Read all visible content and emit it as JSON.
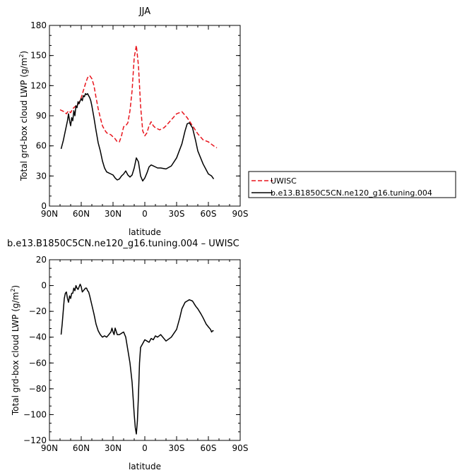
{
  "chart_data": [
    {
      "type": "line",
      "title": "JJA",
      "xlabel": "latitude",
      "ylabel_main": "Total grd-box cloud LWP (g/m",
      "ylabel_sup": "2",
      "ylabel_close": ")",
      "xlim": [
        90,
        -90
      ],
      "ylim": [
        0,
        180
      ],
      "xticks": [
        90,
        60,
        30,
        0,
        -30,
        -60,
        -90
      ],
      "xtick_labels": [
        "90N",
        "60N",
        "30N",
        "0",
        "30S",
        "60S",
        "90S"
      ],
      "yticks": [
        0,
        30,
        60,
        90,
        120,
        150,
        180
      ],
      "ytick_labels": [
        "0",
        "30",
        "60",
        "90",
        "120",
        "150",
        "180"
      ],
      "legend_position": "right",
      "series": [
        {
          "name": "UWISC",
          "color": "#e8141c",
          "dash": true,
          "x": [
            80,
            78,
            76,
            74,
            72,
            70,
            68,
            66,
            64,
            62,
            60,
            58,
            56,
            54,
            52,
            50,
            48,
            46,
            44,
            42,
            40,
            38,
            36,
            34,
            32,
            30,
            28,
            26,
            24,
            22,
            20,
            18,
            16,
            14,
            12,
            10,
            8,
            6,
            4,
            2,
            0,
            -2,
            -4,
            -6,
            -8,
            -10,
            -12,
            -14,
            -16,
            -18,
            -20,
            -25,
            -30,
            -35,
            -40,
            -45,
            -50,
            -55,
            -60,
            -65,
            -68
          ],
          "y": [
            96,
            95,
            94,
            92,
            95,
            93,
            97,
            99,
            100,
            103,
            108,
            115,
            122,
            128,
            130,
            127,
            120,
            108,
            97,
            88,
            80,
            76,
            73,
            72,
            71,
            69,
            67,
            64,
            64,
            70,
            79,
            80,
            83,
            95,
            115,
            148,
            160,
            140,
            100,
            75,
            70,
            73,
            80,
            84,
            80,
            78,
            77,
            76,
            77,
            78,
            80,
            86,
            92,
            94,
            88,
            80,
            72,
            66,
            64,
            60,
            58
          ]
        },
        {
          "name": "b.e13.B1850C5CN.ne120_g16.tuning.004",
          "color": "#000000",
          "dash": false,
          "x": [
            79,
            77,
            75,
            73,
            72,
            71,
            70,
            69,
            68,
            67,
            66,
            65,
            64,
            63,
            62,
            61,
            60,
            59,
            58,
            57,
            56,
            55,
            54,
            53,
            52,
            51,
            50,
            48,
            46,
            44,
            42,
            40,
            38,
            36,
            34,
            32,
            30,
            28,
            26,
            24,
            22,
            20,
            18,
            16,
            14,
            12,
            10,
            8,
            6,
            4,
            2,
            0,
            -2,
            -4,
            -6,
            -8,
            -10,
            -12,
            -15,
            -20,
            -25,
            -30,
            -35,
            -38,
            -40,
            -42,
            -45,
            -48,
            -50,
            -55,
            -60,
            -63,
            -65
          ],
          "y": [
            57,
            65,
            75,
            85,
            92,
            85,
            80,
            88,
            85,
            95,
            90,
            100,
            98,
            104,
            102,
            105,
            107,
            105,
            110,
            109,
            112,
            111,
            112,
            110,
            108,
            105,
            100,
            88,
            75,
            63,
            55,
            45,
            38,
            34,
            33,
            32,
            31,
            28,
            26,
            27,
            30,
            32,
            35,
            31,
            29,
            31,
            38,
            48,
            44,
            30,
            25,
            28,
            33,
            39,
            41,
            40,
            39,
            38,
            38,
            37,
            40,
            48,
            62,
            75,
            82,
            83,
            78,
            65,
            55,
            42,
            32,
            30,
            27
          ]
        }
      ]
    },
    {
      "type": "line",
      "title": "b.e13.B1850C5CN.ne120_g16.tuning.004 – UWISC",
      "xlabel": "latitude",
      "ylabel_main": "Total grd-box cloud LWP (g/m",
      "ylabel_sup": "2",
      "ylabel_close": ")",
      "xlim": [
        90,
        -90
      ],
      "ylim": [
        -120,
        20
      ],
      "xticks": [
        90,
        60,
        30,
        0,
        -30,
        -60,
        -90
      ],
      "xtick_labels": [
        "90N",
        "60N",
        "30N",
        "0",
        "30S",
        "60S",
        "90S"
      ],
      "yticks": [
        -120,
        -100,
        -80,
        -60,
        -40,
        -20,
        0,
        20
      ],
      "ytick_labels": [
        "−120",
        "−100",
        "−80",
        "−60",
        "−40",
        "−20",
        "0",
        "20"
      ],
      "series": [
        {
          "color": "#000000",
          "dash": false,
          "x": [
            79,
            78,
            77,
            76,
            75,
            74,
            73,
            72,
            71,
            70,
            69,
            68,
            67,
            66,
            65,
            64,
            63,
            62,
            61,
            60,
            59,
            58,
            57,
            56,
            55,
            54,
            53,
            52,
            50,
            48,
            46,
            44,
            42,
            40,
            38,
            36,
            34,
            32,
            31,
            30,
            29,
            28,
            26,
            24,
            22,
            20,
            18,
            16,
            14,
            12,
            10,
            9,
            8,
            7,
            6,
            5,
            4,
            2,
            0,
            -2,
            -4,
            -6,
            -8,
            -10,
            -12,
            -15,
            -20,
            -25,
            -30,
            -33,
            -35,
            -38,
            -40,
            -42,
            -45,
            -48,
            -50,
            -53,
            -55,
            -58,
            -60,
            -62,
            -63,
            -64,
            -65
          ],
          "y": [
            -38,
            -30,
            -20,
            -10,
            -6,
            -5,
            -10,
            -13,
            -8,
            -10,
            -6,
            -6,
            -2,
            -4,
            0,
            -2,
            -3,
            -1,
            1,
            -1,
            -5,
            -4,
            -3,
            -2,
            -2,
            -4,
            -5,
            -8,
            -15,
            -22,
            -30,
            -35,
            -38,
            -40,
            -39,
            -40,
            -38,
            -36,
            -33,
            -36,
            -38,
            -33,
            -38,
            -38,
            -37,
            -36,
            -40,
            -50,
            -60,
            -75,
            -100,
            -110,
            -115,
            -105,
            -85,
            -60,
            -48,
            -45,
            -42,
            -43,
            -44,
            -41,
            -42,
            -39,
            -40,
            -38,
            -43,
            -40,
            -34,
            -25,
            -18,
            -13,
            -12,
            -11,
            -12,
            -16,
            -18,
            -22,
            -25,
            -30,
            -32,
            -34,
            -36,
            -35,
            -35
          ]
        }
      ]
    }
  ]
}
